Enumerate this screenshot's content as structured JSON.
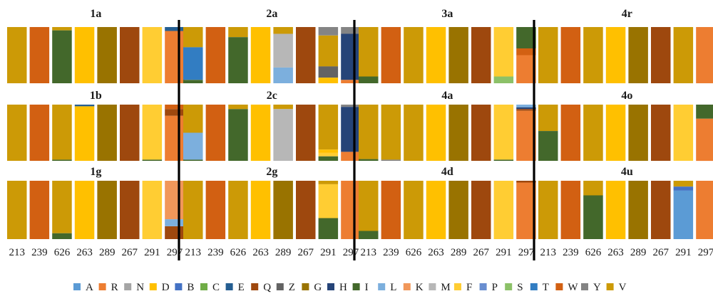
{
  "chart_data": {
    "type": "bar",
    "stacked": true,
    "normalized": true,
    "categories": [
      "213",
      "239",
      "626",
      "263",
      "289",
      "267",
      "291",
      "297"
    ],
    "legend_position": "bottom",
    "legend": [
      {
        "code": "A",
        "color": "#5b9bd5"
      },
      {
        "code": "R",
        "color": "#ed7d31"
      },
      {
        "code": "N",
        "color": "#a5a5a5"
      },
      {
        "code": "D",
        "color": "#ffc000"
      },
      {
        "code": "B",
        "color": "#4472c4"
      },
      {
        "code": "C",
        "color": "#70ad47"
      },
      {
        "code": "E",
        "color": "#255e91"
      },
      {
        "code": "Q",
        "color": "#9e480e"
      },
      {
        "code": "Z",
        "color": "#636363"
      },
      {
        "code": "G",
        "color": "#997300"
      },
      {
        "code": "H",
        "color": "#264478"
      },
      {
        "code": "I",
        "color": "#43682b"
      },
      {
        "code": "L",
        "color": "#7cafdd"
      },
      {
        "code": "K",
        "color": "#f1975a"
      },
      {
        "code": "M",
        "color": "#b7b7b7"
      },
      {
        "code": "F",
        "color": "#ffcd33"
      },
      {
        "code": "P",
        "color": "#698ed0"
      },
      {
        "code": "S",
        "color": "#8cc168"
      },
      {
        "code": "T",
        "color": "#327dc2"
      },
      {
        "code": "W",
        "color": "#d26012"
      },
      {
        "code": "Y",
        "color": "#848484"
      },
      {
        "code": "V",
        "color": "#cc9a06"
      }
    ],
    "panels": [
      {
        "title": "1a",
        "bars": [
          [
            [
              "V",
              1
            ]
          ],
          [
            [
              "W",
              1
            ]
          ],
          [
            [
              "V",
              0.06
            ],
            [
              "I",
              0.94
            ]
          ],
          [
            [
              "D",
              1
            ]
          ],
          [
            [
              "G",
              1
            ]
          ],
          [
            [
              "Q",
              1
            ]
          ],
          [
            [
              "F",
              1
            ]
          ],
          [
            [
              "E",
              0.07
            ],
            [
              "R",
              0.93
            ]
          ]
        ]
      },
      {
        "title": "1b",
        "bars": [
          [
            [
              "V",
              1
            ]
          ],
          [
            [
              "W",
              1
            ]
          ],
          [
            [
              "V",
              0.98
            ],
            [
              "I",
              0.02
            ]
          ],
          [
            [
              "E",
              0.03
            ],
            [
              "D",
              0.97
            ]
          ],
          [
            [
              "G",
              1
            ]
          ],
          [
            [
              "Q",
              1
            ]
          ],
          [
            [
              "F",
              0.98
            ],
            [
              "I",
              0.02
            ]
          ],
          [
            [
              "W",
              0.08
            ],
            [
              "Q",
              0.12
            ],
            [
              "R",
              0.8
            ]
          ]
        ]
      },
      {
        "title": "1g",
        "bars": [
          [
            [
              "V",
              1
            ]
          ],
          [
            [
              "W",
              1
            ]
          ],
          [
            [
              "V",
              0.9
            ],
            [
              "I",
              0.1
            ]
          ],
          [
            [
              "D",
              1
            ]
          ],
          [
            [
              "G",
              1
            ]
          ],
          [
            [
              "Q",
              1
            ]
          ],
          [
            [
              "F",
              1
            ]
          ],
          [
            [
              "K",
              0.66
            ],
            [
              "L",
              0.12
            ],
            [
              "Q",
              0.22
            ]
          ]
        ]
      },
      {
        "title": "2a",
        "bars": [
          [
            [
              "V",
              0.36
            ],
            [
              "T",
              0.58
            ],
            [
              "I",
              0.06
            ]
          ],
          [
            [
              "W",
              1
            ]
          ],
          [
            [
              "V",
              0.18
            ],
            [
              "I",
              0.82
            ]
          ],
          [
            [
              "D",
              1
            ]
          ],
          [
            [
              "V",
              0.12
            ],
            [
              "M",
              0.6
            ],
            [
              "L",
              0.28
            ]
          ],
          [
            [
              "Q",
              1
            ]
          ],
          [
            [
              "Y",
              0.15
            ],
            [
              "V",
              0.55
            ],
            [
              "Z",
              0.2
            ],
            [
              "D",
              0.1
            ]
          ],
          [
            [
              "Y",
              0.12
            ],
            [
              "H",
              0.82
            ],
            [
              "R",
              0.06
            ]
          ]
        ]
      },
      {
        "title": "2c",
        "bars": [
          [
            [
              "V",
              0.5
            ],
            [
              "L",
              0.48
            ],
            [
              "I",
              0.02
            ]
          ],
          [
            [
              "W",
              1
            ]
          ],
          [
            [
              "V",
              0.08
            ],
            [
              "I",
              0.92
            ]
          ],
          [
            [
              "D",
              1
            ]
          ],
          [
            [
              "V",
              0.08
            ],
            [
              "M",
              0.92
            ]
          ],
          [
            [
              "Q",
              1
            ]
          ],
          [
            [
              "V",
              0.8
            ],
            [
              "D",
              0.06
            ],
            [
              "F",
              0.06
            ],
            [
              "I",
              0.08
            ]
          ],
          [
            [
              "Y",
              0.04
            ],
            [
              "H",
              0.8
            ],
            [
              "R",
              0.16
            ]
          ]
        ]
      },
      {
        "title": "2g",
        "bars": [
          [
            [
              "V",
              1
            ]
          ],
          [
            [
              "W",
              1
            ]
          ],
          [
            [
              "V",
              1
            ]
          ],
          [
            [
              "D",
              1
            ]
          ],
          [
            [
              "G",
              1
            ]
          ],
          [
            [
              "Q",
              1
            ]
          ],
          [
            [
              "V",
              0.06
            ],
            [
              "F",
              0.58
            ],
            [
              "I",
              0.36
            ]
          ],
          [
            [
              "R",
              1
            ]
          ]
        ]
      },
      {
        "title": "3a",
        "bars": [
          [
            [
              "V",
              0.88
            ],
            [
              "I",
              0.12
            ]
          ],
          [
            [
              "W",
              1
            ]
          ],
          [
            [
              "V",
              1
            ]
          ],
          [
            [
              "D",
              1
            ]
          ],
          [
            [
              "G",
              1
            ]
          ],
          [
            [
              "Q",
              1
            ]
          ],
          [
            [
              "F",
              0.88
            ],
            [
              "S",
              0.12
            ]
          ],
          [
            [
              "I",
              0.38
            ],
            [
              "W",
              0.12
            ],
            [
              "R",
              0.5
            ]
          ]
        ]
      },
      {
        "title": "4a",
        "bars": [
          [
            [
              "V",
              0.97
            ],
            [
              "I",
              0.03
            ]
          ],
          [
            [
              "V",
              0.98
            ],
            [
              "Y",
              0.02
            ]
          ],
          [
            [
              "V",
              1
            ]
          ],
          [
            [
              "D",
              1
            ]
          ],
          [
            [
              "G",
              1
            ]
          ],
          [
            [
              "Q",
              1
            ]
          ],
          [
            [
              "F",
              0.98
            ],
            [
              "I",
              0.02
            ]
          ],
          [
            [
              "L",
              0.05
            ],
            [
              "H",
              0.03
            ],
            [
              "Q",
              0.03
            ],
            [
              "R",
              0.89
            ]
          ]
        ]
      },
      {
        "title": "4d",
        "bars": [
          [
            [
              "V",
              0.86
            ],
            [
              "I",
              0.14
            ]
          ],
          [
            [
              "W",
              1
            ]
          ],
          [
            [
              "V",
              1
            ]
          ],
          [
            [
              "D",
              1
            ]
          ],
          [
            [
              "G",
              1
            ]
          ],
          [
            [
              "Q",
              1
            ]
          ],
          [
            [
              "F",
              1
            ]
          ],
          [
            [
              "Q",
              0.03
            ],
            [
              "R",
              0.97
            ]
          ]
        ]
      },
      {
        "title": "4r",
        "bars": [
          [
            [
              "V",
              1
            ]
          ],
          [
            [
              "W",
              1
            ]
          ],
          [
            [
              "V",
              1
            ]
          ],
          [
            [
              "D",
              1
            ]
          ],
          [
            [
              "G",
              1
            ]
          ],
          [
            [
              "Q",
              1
            ]
          ],
          [
            [
              "V",
              1
            ]
          ],
          [
            [
              "R",
              1
            ]
          ]
        ]
      },
      {
        "title": "4o",
        "bars": [
          [
            [
              "V",
              0.47
            ],
            [
              "I",
              0.53
            ]
          ],
          [
            [
              "W",
              1
            ]
          ],
          [
            [
              "V",
              1
            ]
          ],
          [
            [
              "D",
              1
            ]
          ],
          [
            [
              "G",
              1
            ]
          ],
          [
            [
              "Q",
              1
            ]
          ],
          [
            [
              "F",
              1
            ]
          ],
          [
            [
              "I",
              0.25
            ],
            [
              "R",
              0.75
            ]
          ]
        ]
      },
      {
        "title": "4u",
        "bars": [
          [
            [
              "V",
              1
            ]
          ],
          [
            [
              "W",
              1
            ]
          ],
          [
            [
              "V",
              0.25
            ],
            [
              "I",
              0.75
            ]
          ],
          [
            [
              "D",
              1
            ]
          ],
          [
            [
              "G",
              1
            ]
          ],
          [
            [
              "Q",
              1
            ]
          ],
          [
            [
              "V",
              0.1
            ],
            [
              "B",
              0.07
            ],
            [
              "A",
              0.83
            ]
          ],
          [
            [
              "R",
              1
            ]
          ]
        ]
      }
    ]
  }
}
